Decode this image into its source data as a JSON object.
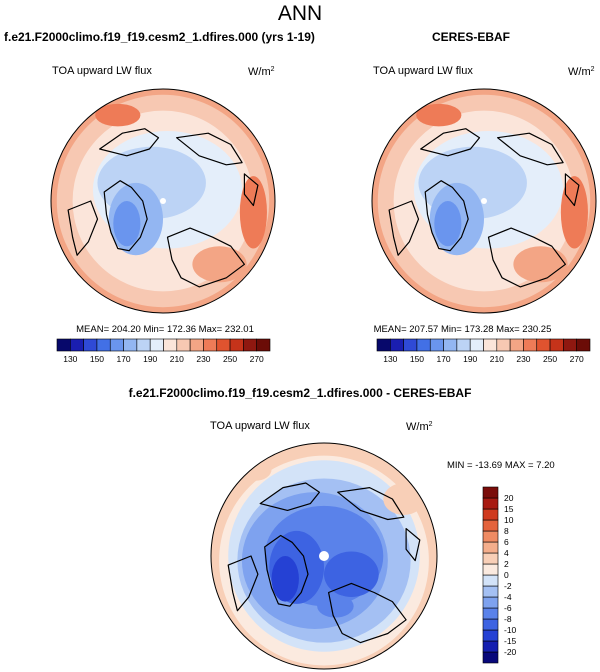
{
  "figure": {
    "title": "ANN",
    "panels": [
      {
        "title": "f.e21.F2000climo.f19_f19.cesm2_1.dfires.000 (yrs 1-19)",
        "variable": "TOA upward LW flux",
        "units_base": "W/m",
        "units_exp": "2",
        "stats": "MEAN= 204.20  Min= 172.36  Max= 232.01"
      },
      {
        "title": "CERES-EBAF",
        "variable": "TOA upward LW flux",
        "units_base": "W/m",
        "units_exp": "2",
        "stats": "MEAN= 207.57  Min= 173.28  Max= 230.25"
      },
      {
        "title": "f.e21.F2000climo.f19_f19.cesm2_1.dfires.000 - CERES-EBAF",
        "variable": "TOA upward LW flux",
        "units_base": "W/m",
        "units_exp": "2",
        "stats": "MIN = -13.69 MAX =   7.20"
      }
    ]
  },
  "chart_data": [
    {
      "type": "heatmap",
      "projection": "north-polar-stereographic",
      "title": "f.e21.F2000climo.f19_f19.cesm2_1.dfires.000 (yrs 1-19)",
      "variable": "TOA upward LW flux",
      "units": "W/m2",
      "stats": {
        "mean": 204.2,
        "min": 172.36,
        "max": 232.01
      },
      "colorbar": {
        "orientation": "horizontal",
        "levels": [
          130,
          140,
          150,
          160,
          170,
          180,
          190,
          200,
          210,
          220,
          230,
          240,
          250,
          260,
          270
        ],
        "tick_labels": [
          "130",
          "150",
          "170",
          "190",
          "210",
          "230",
          "250",
          "270"
        ],
        "colors": [
          "#07086b",
          "#1a1eb0",
          "#2f4ad6",
          "#4270e6",
          "#6a95ee",
          "#93b6f2",
          "#bcd3f5",
          "#e4eefa",
          "#fbe5da",
          "#f7c8b2",
          "#f3a585",
          "#ee7b57",
          "#e0532f",
          "#c5331a",
          "#8f1810",
          "#6b0c07"
        ]
      }
    },
    {
      "type": "heatmap",
      "projection": "north-polar-stereographic",
      "title": "CERES-EBAF",
      "variable": "TOA upward LW flux",
      "units": "W/m2",
      "stats": {
        "mean": 207.57,
        "min": 173.28,
        "max": 230.25
      },
      "colorbar": {
        "orientation": "horizontal",
        "levels": [
          130,
          140,
          150,
          160,
          170,
          180,
          190,
          200,
          210,
          220,
          230,
          240,
          250,
          260,
          270
        ],
        "tick_labels": [
          "130",
          "150",
          "170",
          "190",
          "210",
          "230",
          "250",
          "270"
        ],
        "colors": [
          "#07086b",
          "#1a1eb0",
          "#2f4ad6",
          "#4270e6",
          "#6a95ee",
          "#93b6f2",
          "#bcd3f5",
          "#e4eefa",
          "#fbe5da",
          "#f7c8b2",
          "#f3a585",
          "#ee7b57",
          "#e0532f",
          "#c5331a",
          "#8f1810",
          "#6b0c07"
        ]
      }
    },
    {
      "type": "heatmap",
      "projection": "north-polar-stereographic",
      "title": "f.e21.F2000climo.f19_f19.cesm2_1.dfires.000 - CERES-EBAF",
      "variable": "TOA upward LW flux",
      "units": "W/m2",
      "stats": {
        "min": -13.69,
        "max": 7.2
      },
      "colorbar": {
        "orientation": "vertical",
        "levels": [
          -20,
          -15,
          -10,
          -8,
          -6,
          -4,
          -2,
          0,
          2,
          4,
          6,
          8,
          10,
          15,
          20
        ],
        "tick_labels": [
          "-20",
          "-15",
          "-10",
          "-8",
          "-6",
          "-4",
          "-2",
          "0",
          "2",
          "4",
          "6",
          "8",
          "10",
          "15",
          "20"
        ],
        "colors": [
          "#08087a",
          "#151fb0",
          "#2541d4",
          "#3d63e2",
          "#5a82ea",
          "#7ea2ef",
          "#a4c0f3",
          "#d3e3f8",
          "#fbeadf",
          "#f8cfb7",
          "#f4ae8c",
          "#ef8b63",
          "#e4633c",
          "#cf3a1f",
          "#a81b12",
          "#7a0d0a"
        ]
      }
    }
  ]
}
